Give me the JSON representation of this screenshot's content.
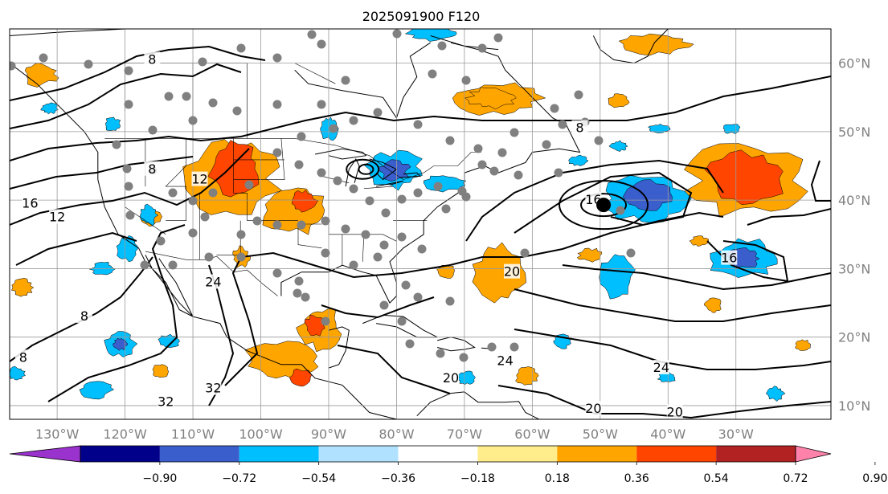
{
  "title": "2025091900 F120",
  "map": {
    "lon_min": -137,
    "lon_max": -16,
    "lat_min": 8,
    "lat_max": 65,
    "lon_ticks": [
      {
        "value": -130,
        "label": "130°W"
      },
      {
        "value": -120,
        "label": "120°W"
      },
      {
        "value": -110,
        "label": "110°W"
      },
      {
        "value": -100,
        "label": "100°W"
      },
      {
        "value": -90,
        "label": "90°W"
      },
      {
        "value": -80,
        "label": "80°W"
      },
      {
        "value": -70,
        "label": "70°W"
      },
      {
        "value": -60,
        "label": "60°W"
      },
      {
        "value": -50,
        "label": "50°W"
      },
      {
        "value": -40,
        "label": "40°W"
      },
      {
        "value": -30,
        "label": "30°W"
      }
    ],
    "lat_ticks": [
      {
        "value": 60,
        "label": "60°N"
      },
      {
        "value": 50,
        "label": "50°N"
      },
      {
        "value": 40,
        "label": "40°N"
      },
      {
        "value": 30,
        "label": "30°N"
      },
      {
        "value": 20,
        "label": "20°N"
      },
      {
        "value": 10,
        "label": "10°N"
      }
    ],
    "grid": true,
    "contour_labels": [
      {
        "text": "8",
        "lon": -116,
        "lat": 60.5
      },
      {
        "text": "8",
        "lon": -53,
        "lat": 50.5
      },
      {
        "text": "8",
        "lon": -116,
        "lat": 44.5
      },
      {
        "text": "12",
        "lon": -109,
        "lat": 43
      },
      {
        "text": "12",
        "lon": -130,
        "lat": 37.5
      },
      {
        "text": "16",
        "lon": -134,
        "lat": 39.5
      },
      {
        "text": "16",
        "lon": -51,
        "lat": 40
      },
      {
        "text": "16",
        "lon": -31,
        "lat": 31.5
      },
      {
        "text": "20",
        "lon": -63,
        "lat": 29.5
      },
      {
        "text": "20",
        "lon": -51,
        "lat": 9.5
      },
      {
        "text": "20",
        "lon": -39,
        "lat": 9
      },
      {
        "text": "24",
        "lon": -107,
        "lat": 28
      },
      {
        "text": "24",
        "lon": -41,
        "lat": 15.5
      },
      {
        "text": "24",
        "lon": -64,
        "lat": 16.5
      },
      {
        "text": "8",
        "lon": -126,
        "lat": 23
      },
      {
        "text": "8",
        "lon": -135,
        "lat": 17
      },
      {
        "text": "32",
        "lon": -107,
        "lat": 12.5
      },
      {
        "text": "32",
        "lon": -114,
        "lat": 10.5
      },
      {
        "text": "20",
        "lon": -72,
        "lat": 14
      }
    ],
    "marker": {
      "lon": -49.5,
      "lat": 39.3
    }
  },
  "colorbar": {
    "tick_labels": [
      "−0.90",
      "−0.72",
      "−0.54",
      "−0.36",
      "−0.18",
      "0.18",
      "0.36",
      "0.54",
      "0.72",
      "0.90"
    ],
    "colors": [
      "#9a32cd",
      "#00008b",
      "#3a5fcd",
      "#00bfff",
      "#b0e2ff",
      "#ffffff",
      "#ffec8b",
      "#ffa500",
      "#ff4500",
      "#b22222",
      "#ff82ab"
    ]
  }
}
